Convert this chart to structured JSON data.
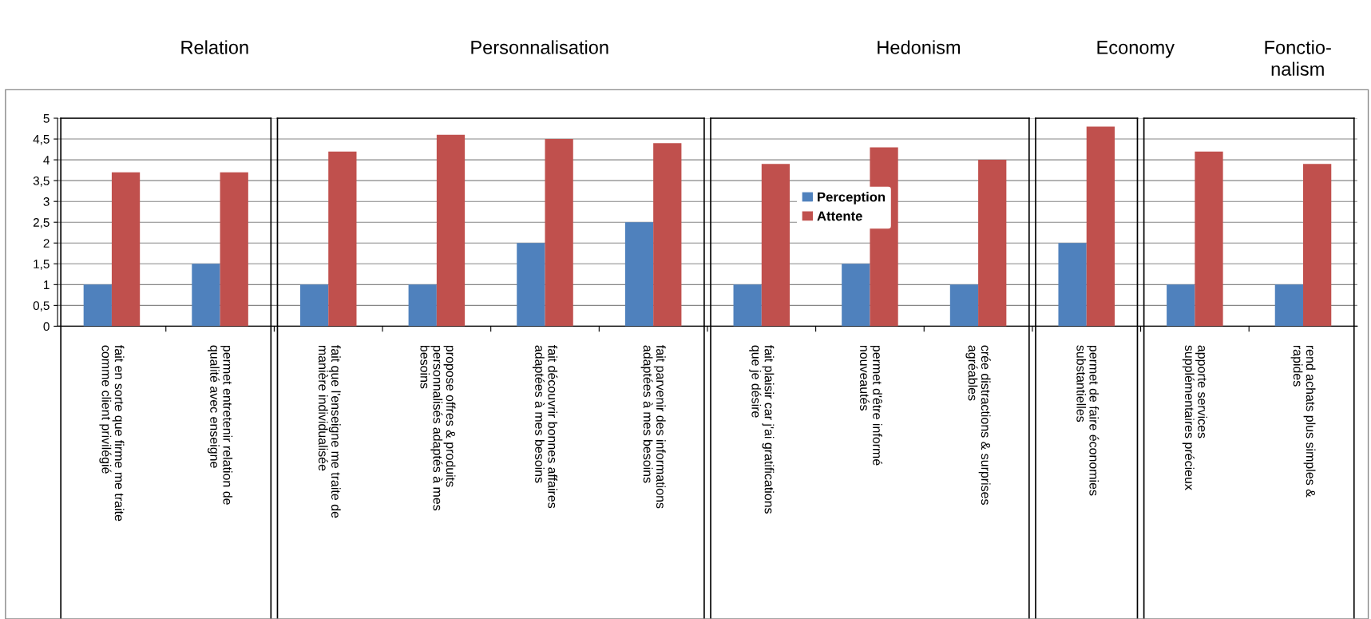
{
  "chart_data": {
    "type": "bar",
    "categories": [
      "fait en sorte que firme me traite\ncomme client privilégié",
      "permet entretenir relation de\nqualité avec enseigne",
      "fait que l'enseigne me traite de\nmanière individualisée",
      "propose offres & produits\npersonnalisés adaptés à mes\nbesoins",
      "fait découvrir bonnes affaires\nadaptées à mes besoins",
      "fait parvenir des informations\nadaptées à mes besoins",
      "fait plaisir car j'ai gratifications\nque je désire",
      "permet d'être informé\nnouveautés",
      "crée distractions & surprises\nagréables",
      "permet de faire économies\nsubstantielles",
      "apporte services\nsupplémentaires précieux",
      "rend achats plus simples &\nrapides"
    ],
    "series": [
      {
        "name": "Perception",
        "color": "#4f81bd",
        "values": [
          1,
          1.5,
          1,
          1,
          2,
          2.5,
          1,
          1.5,
          1,
          2,
          1,
          1
        ]
      },
      {
        "name": "Attente",
        "color": "#c0504d",
        "values": [
          3.7,
          3.7,
          4.2,
          4.6,
          4.5,
          4.4,
          3.9,
          4.3,
          4.0,
          4.8,
          4.2,
          3.9
        ]
      }
    ],
    "ylim": [
      0,
      5
    ],
    "yticks": [
      0,
      {
        "value": 0.5,
        "label": "0,5"
      },
      1,
      {
        "value": 1.5,
        "label": "1,5"
      },
      2,
      {
        "value": 2.5,
        "label": "2,5"
      },
      3,
      {
        "value": 3.5,
        "label": "3,5"
      },
      4,
      {
        "value": 4.5,
        "label": "4,5"
      },
      5
    ],
    "grid": "y",
    "legend": "center",
    "annotations": [
      "Relation",
      "Personnalisation",
      "Hedonism",
      "Economy",
      "Fonctio-\nnalism"
    ]
  }
}
